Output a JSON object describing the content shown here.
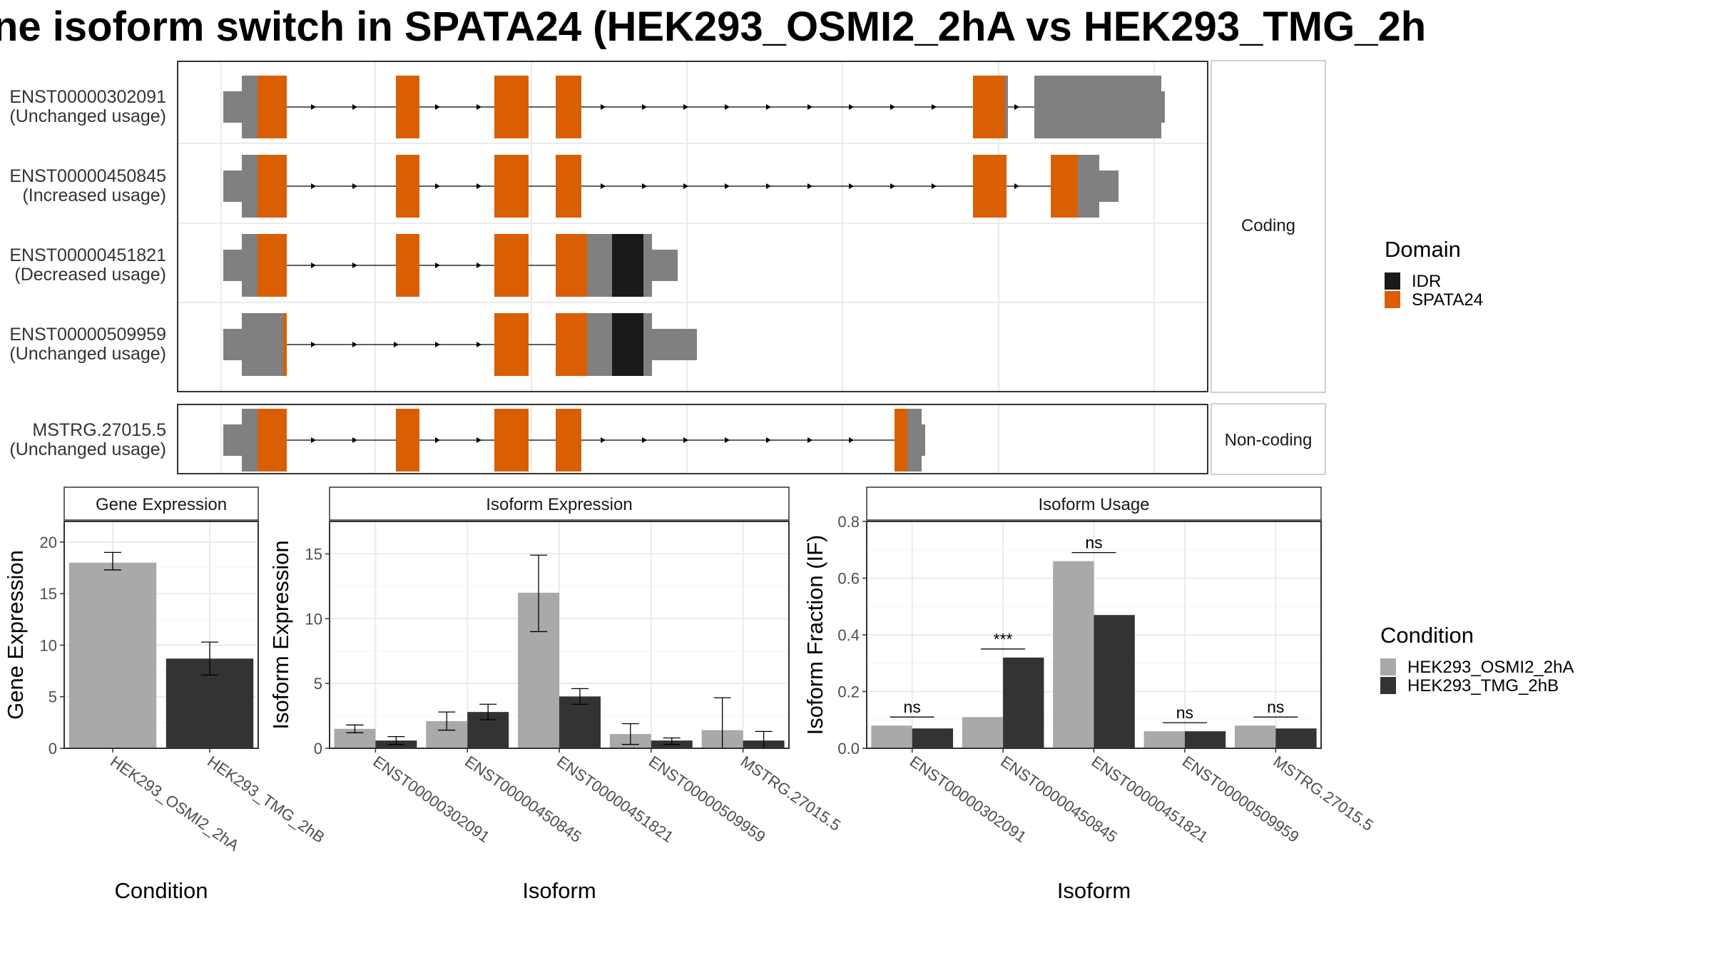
{
  "title": "ne isoform switch in SPATA24 (HEK293_OSMI2_2hA vs HEK293_TMG_2h",
  "colors": {
    "spata24": "#D95F02",
    "idr": "#1A1A1A",
    "utr": "#808080",
    "cond_a": "#A9A9A9",
    "cond_b": "#333333"
  },
  "structure": {
    "panels": [
      {
        "label": "Coding",
        "isoforms": [
          {
            "id": "ENST00000302091",
            "usage": "(Unchanged usage)"
          },
          {
            "id": "ENST00000450845",
            "usage": "(Increased usage)"
          },
          {
            "id": "ENST00000451821",
            "usage": "(Decreased usage)"
          },
          {
            "id": "ENST00000509959",
            "usage": "(Unchanged usage)"
          }
        ]
      },
      {
        "label": "Non-coding",
        "isoforms": [
          {
            "id": "MSTRG.27015.5",
            "usage": "(Unchanged usage)"
          }
        ]
      }
    ]
  },
  "legends": {
    "domain": {
      "title": "Domain",
      "items": [
        {
          "label": "IDR",
          "color": "#1A1A1A"
        },
        {
          "label": "SPATA24",
          "color": "#D95F02"
        }
      ]
    },
    "condition": {
      "title": "Condition",
      "items": [
        {
          "label": "HEK293_OSMI2_2hA",
          "color": "#A9A9A9"
        },
        {
          "label": "HEK293_TMG_2hB",
          "color": "#333333"
        }
      ]
    }
  },
  "chart_data": [
    {
      "type": "bar",
      "title": "Gene Expression",
      "xlabel": "Condition",
      "ylabel": "Gene Expression",
      "ylim": [
        0,
        22
      ],
      "yticks": [
        0,
        5,
        10,
        15,
        20
      ],
      "categories": [
        "HEK293_OSMI2_2hA",
        "HEK293_TMG_2hB"
      ],
      "values": [
        18.0,
        8.7
      ],
      "error_low": [
        17.3,
        7.1
      ],
      "error_high": [
        19.0,
        10.3
      ]
    },
    {
      "type": "bar",
      "title": "Isoform Expression",
      "xlabel": "Isoform",
      "ylabel": "Isoform Expression",
      "ylim": [
        0,
        17.5
      ],
      "yticks": [
        0,
        5,
        10,
        15
      ],
      "categories": [
        "ENST00000302091",
        "ENST00000450845",
        "ENST00000451821",
        "ENST00000509959",
        "MSTRG.27015.5"
      ],
      "series": [
        {
          "name": "HEK293_OSMI2_2hA",
          "values": [
            1.5,
            2.1,
            12.0,
            1.1,
            1.4
          ],
          "error_low": [
            1.2,
            1.4,
            9.0,
            0.3,
            0.0
          ],
          "error_high": [
            1.8,
            2.8,
            14.9,
            1.9,
            3.9
          ]
        },
        {
          "name": "HEK293_TMG_2hB",
          "values": [
            0.6,
            2.8,
            4.0,
            0.6,
            0.6
          ],
          "error_low": [
            0.3,
            2.2,
            3.4,
            0.3,
            0.0
          ],
          "error_high": [
            0.9,
            3.4,
            4.6,
            0.8,
            1.3
          ]
        }
      ]
    },
    {
      "type": "bar",
      "title": "Isoform Usage",
      "xlabel": "Isoform",
      "ylabel": "Isoform Fraction (IF)",
      "ylim": [
        0,
        0.8
      ],
      "yticks": [
        0.0,
        0.2,
        0.4,
        0.6,
        0.8
      ],
      "categories": [
        "ENST00000302091",
        "ENST00000450845",
        "ENST00000451821",
        "ENST00000509959",
        "MSTRG.27015.5"
      ],
      "series": [
        {
          "name": "HEK293_OSMI2_2hA",
          "values": [
            0.08,
            0.11,
            0.66,
            0.06,
            0.08
          ]
        },
        {
          "name": "HEK293_TMG_2hB",
          "values": [
            0.07,
            0.32,
            0.47,
            0.06,
            0.07
          ]
        }
      ],
      "significance": [
        "ns",
        "***",
        "ns",
        "ns",
        "ns"
      ]
    }
  ]
}
